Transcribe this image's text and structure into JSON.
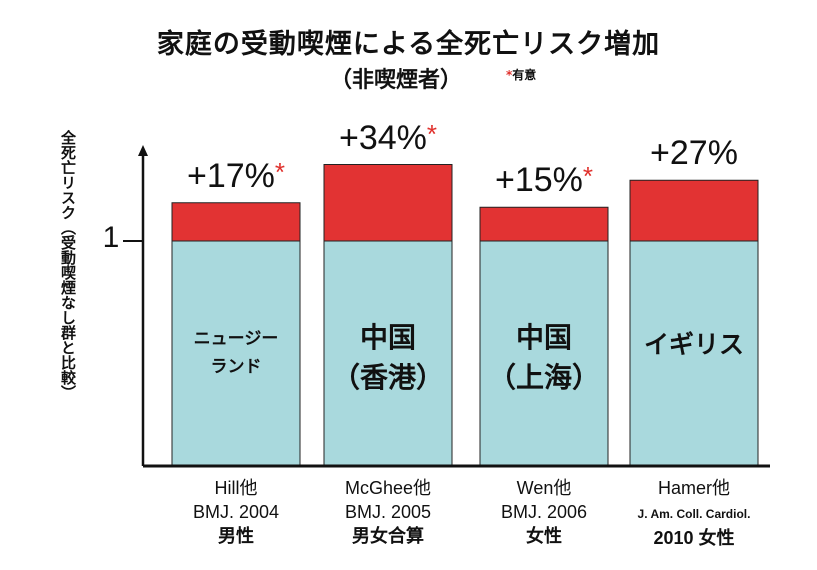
{
  "chart_data": {
    "type": "bar",
    "title": "家庭の受動喫煙による全死亡リスク増加",
    "subtitle": "（非喫煙者）",
    "note": "有意",
    "note_mark": "*",
    "ylabel": "全死亡リスク（受動喫煙なし群と比較）",
    "yticks": [
      {
        "value": 1,
        "label": "1"
      }
    ],
    "ylim": [
      0,
      1.4
    ],
    "baseline": 1,
    "categories": [
      {
        "inbar": [
          "ニュージー",
          "ランド"
        ],
        "study": "Hill他",
        "journal": "BMJ. 2004",
        "group": "男性",
        "value": 1.17,
        "label": "+17%",
        "significant": true
      },
      {
        "inbar": [
          "中国",
          "（香港）"
        ],
        "study": "McGhee他",
        "journal": "BMJ. 2005",
        "group": "男女合算",
        "value": 1.34,
        "label": "+34%",
        "significant": true
      },
      {
        "inbar": [
          "中国",
          "（上海）"
        ],
        "study": "Wen他",
        "journal": "BMJ. 2006",
        "group": "女性",
        "value": 1.15,
        "label": "+15%",
        "significant": true
      },
      {
        "inbar": [
          "イギリス"
        ],
        "study": "Hamer他",
        "journal": "J. Am. Coll. Cardiol.",
        "group": "2010  女性",
        "value": 1.27,
        "label": "+27%",
        "significant": false
      }
    ],
    "colors": {
      "base": "#a9d9dd",
      "increase": "#e23333",
      "axis": "#111111"
    }
  }
}
